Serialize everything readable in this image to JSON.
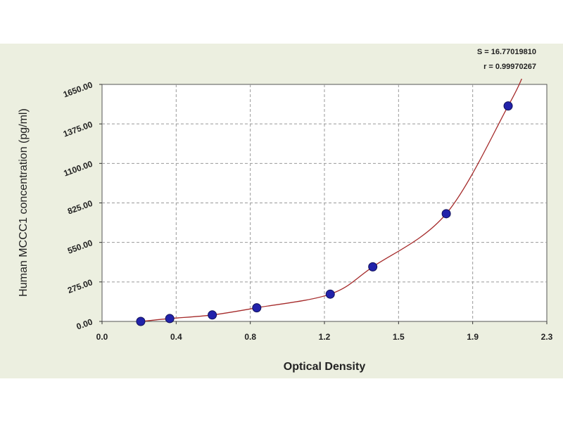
{
  "chart_data": {
    "type": "scatter",
    "xlabel": "Optical Density",
    "ylabel": "Human MCCC1 concentration (pg/ml)",
    "xlim": [
      0.0,
      2.3
    ],
    "ylim": [
      0.0,
      1650.0
    ],
    "x_ticks": [
      "0.0",
      "0.4",
      "0.8",
      "1.2",
      "1.5",
      "1.9",
      "2.3"
    ],
    "y_ticks": [
      "0.00",
      "275.00",
      "550.00",
      "825.00",
      "1100.00",
      "1375.00",
      "1650.00"
    ],
    "stats": {
      "s": "S = 16.77019810",
      "r": "r = 0.99970267"
    },
    "grid": true,
    "point_color": "#2222aa",
    "curve_color": "#a52a2a",
    "points": [
      {
        "x": 0.2,
        "y": 0
      },
      {
        "x": 0.35,
        "y": 20
      },
      {
        "x": 0.57,
        "y": 45
      },
      {
        "x": 0.8,
        "y": 95
      },
      {
        "x": 1.18,
        "y": 190
      },
      {
        "x": 1.4,
        "y": 380
      },
      {
        "x": 1.78,
        "y": 750
      },
      {
        "x": 2.1,
        "y": 1500
      }
    ]
  }
}
